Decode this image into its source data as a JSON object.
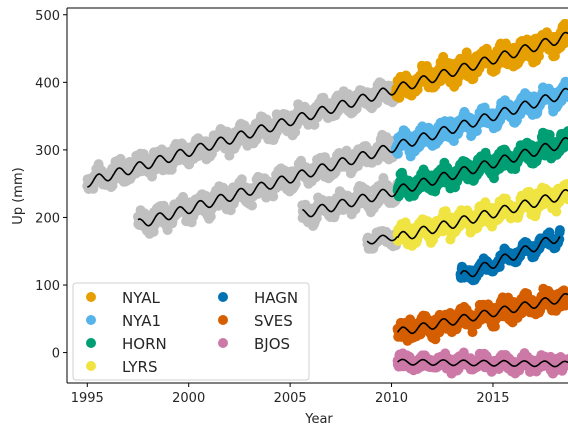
{
  "chart_data": {
    "type": "scatter",
    "title": "",
    "xlabel": "Year",
    "ylabel": "Up (mm)",
    "xlim": [
      1994,
      2018.7
    ],
    "ylim": [
      -45,
      510
    ],
    "xticks": [
      1995,
      2000,
      2005,
      2010,
      2015
    ],
    "yticks": [
      0,
      100,
      200,
      300,
      400,
      500
    ],
    "grid": false,
    "legend_placement": "lower-left",
    "legend_columns": 2,
    "background_color": "#c0c0c0",
    "fit_color": "#000000",
    "series": [
      {
        "name": "NYAL",
        "color": "#e69f00",
        "period": [
          2010.2,
          2018.7
        ],
        "start": 390,
        "end": 468,
        "amplitude": 7,
        "spread": 22
      },
      {
        "name": "NYA1",
        "color": "#56b4e9",
        "period": [
          2010.2,
          2018.7
        ],
        "start": 305,
        "end": 385,
        "amplitude": 7,
        "spread": 20
      },
      {
        "name": "HORN",
        "color": "#009e73",
        "period": [
          2010.3,
          2018.7
        ],
        "start": 240,
        "end": 312,
        "amplitude": 7,
        "spread": 20
      },
      {
        "name": "LYRS",
        "color": "#f0e442",
        "period": [
          2010.3,
          2018.7
        ],
        "start": 170,
        "end": 235,
        "amplitude": 7,
        "spread": 20
      },
      {
        "name": "HAGN",
        "color": "#0072b2",
        "period": [
          2013.4,
          2018.3
        ],
        "start": 112,
        "end": 172,
        "amplitude": 7,
        "spread": 12
      },
      {
        "name": "SVES",
        "color": "#d55e00",
        "period": [
          2010.3,
          2018.7
        ],
        "start": 30,
        "end": 82,
        "amplitude": 6,
        "spread": 20
      },
      {
        "name": "BJOS",
        "color": "#cc79a7",
        "period": [
          2010.3,
          2018.7
        ],
        "start": -14,
        "end": -17,
        "amplitude": 4,
        "spread": 14
      }
    ],
    "background_segments": [
      {
        "period": [
          1995.0,
          2010.2
        ],
        "start": 252,
        "end": 390,
        "amplitude": 7,
        "spread": 20
      },
      {
        "period": [
          1997.5,
          2010.2
        ],
        "start": 190,
        "end": 305,
        "amplitude": 7,
        "spread": 20
      },
      {
        "period": [
          2005.6,
          2010.3
        ],
        "start": 205,
        "end": 240,
        "amplitude": 7,
        "spread": 20
      },
      {
        "period": [
          2008.8,
          2010.3
        ],
        "start": 165,
        "end": 172,
        "amplitude": 5,
        "spread": 14
      }
    ]
  }
}
